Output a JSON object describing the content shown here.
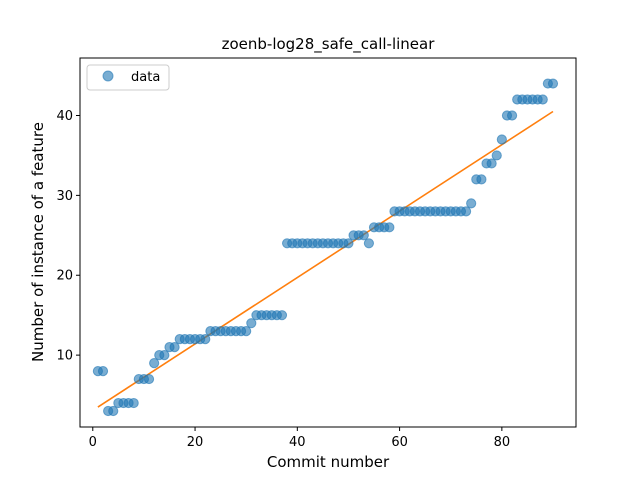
{
  "chart_data": {
    "type": "scatter",
    "title": "zoenb-log28_safe_call-linear",
    "xlabel": "Commit number",
    "ylabel": "Number of instance of a feature",
    "xlim": [
      -2.5,
      94.5
    ],
    "ylim": [
      1,
      47.2
    ],
    "xticks": [
      0,
      20,
      40,
      60,
      80
    ],
    "yticks": [
      10,
      20,
      30,
      40
    ],
    "grid": false,
    "legend": {
      "placement": "top-left",
      "entries": [
        "data"
      ]
    },
    "colors": {
      "data": "#1f77b4",
      "fit": "#ff7f0e"
    },
    "series": [
      {
        "name": "data",
        "kind": "points",
        "x": [
          1,
          2,
          3,
          4,
          5,
          6,
          7,
          8,
          9,
          10,
          11,
          12,
          13,
          14,
          15,
          16,
          17,
          18,
          19,
          20,
          21,
          22,
          23,
          24,
          25,
          26,
          27,
          28,
          29,
          30,
          31,
          32,
          33,
          34,
          35,
          36,
          37,
          38,
          39,
          40,
          41,
          42,
          43,
          44,
          45,
          46,
          47,
          48,
          49,
          50,
          51,
          52,
          53,
          54,
          55,
          56,
          57,
          58,
          59,
          60,
          61,
          62,
          63,
          64,
          65,
          66,
          67,
          68,
          69,
          70,
          71,
          72,
          73,
          74,
          75,
          76,
          77,
          78,
          79,
          80,
          81,
          82,
          83,
          84,
          85,
          86,
          87,
          88,
          89,
          90
        ],
        "y": [
          8,
          8,
          3,
          3,
          4,
          4,
          4,
          4,
          7,
          7,
          7,
          9,
          10,
          10,
          11,
          11,
          12,
          12,
          12,
          12,
          12,
          12,
          13,
          13,
          13,
          13,
          13,
          13,
          13,
          13,
          14,
          15,
          15,
          15,
          15,
          15,
          15,
          24,
          24,
          24,
          24,
          24,
          24,
          24,
          24,
          24,
          24,
          24,
          24,
          24,
          25,
          25,
          25,
          24,
          26,
          26,
          26,
          26,
          28,
          28,
          28,
          28,
          28,
          28,
          28,
          28,
          28,
          28,
          28,
          28,
          28,
          28,
          28,
          29,
          32,
          32,
          34,
          34,
          35,
          37,
          40,
          40,
          42,
          42,
          42,
          42,
          42,
          42,
          44,
          44
        ]
      },
      {
        "kind": "fit-line",
        "x": [
          1,
          90
        ],
        "y": [
          3.5,
          40.5
        ]
      }
    ]
  }
}
